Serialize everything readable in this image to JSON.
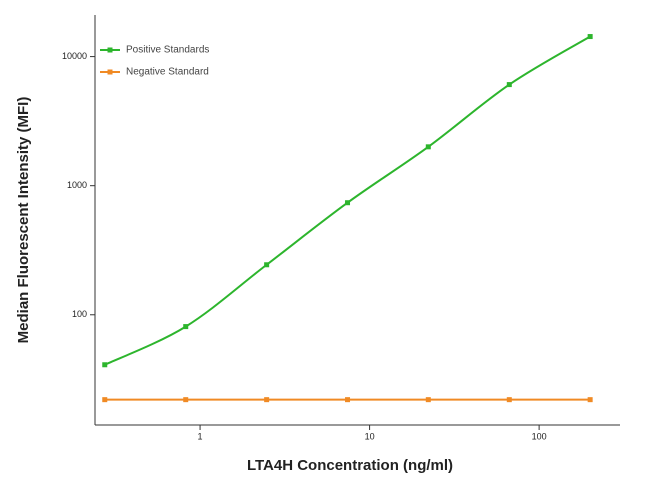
{
  "chart_data": {
    "type": "line",
    "x_label": "LTA4H Concentration (ng/ml)",
    "y_label": "Median  Fluorescent Intensity  (MFI)",
    "x_log": true,
    "y_log": true,
    "xlim": [
      0.24,
      300
    ],
    "ylim": [
      14,
      21000
    ],
    "xticks": [
      1,
      10,
      100
    ],
    "yticks": [
      100,
      1000,
      10000
    ],
    "x": [
      0.274,
      0.823,
      2.47,
      7.41,
      22.2,
      66.7,
      200
    ],
    "series": [
      {
        "name": "Positive Standards",
        "color": "#2db52d",
        "values": [
          41,
          81,
          244,
          738,
          2000,
          6070,
          14300
        ]
      },
      {
        "name": "Negative Standard",
        "color": "#f08a24",
        "values": [
          22,
          22,
          22,
          22,
          22,
          22,
          22
        ]
      }
    ],
    "legend": "upper left"
  }
}
